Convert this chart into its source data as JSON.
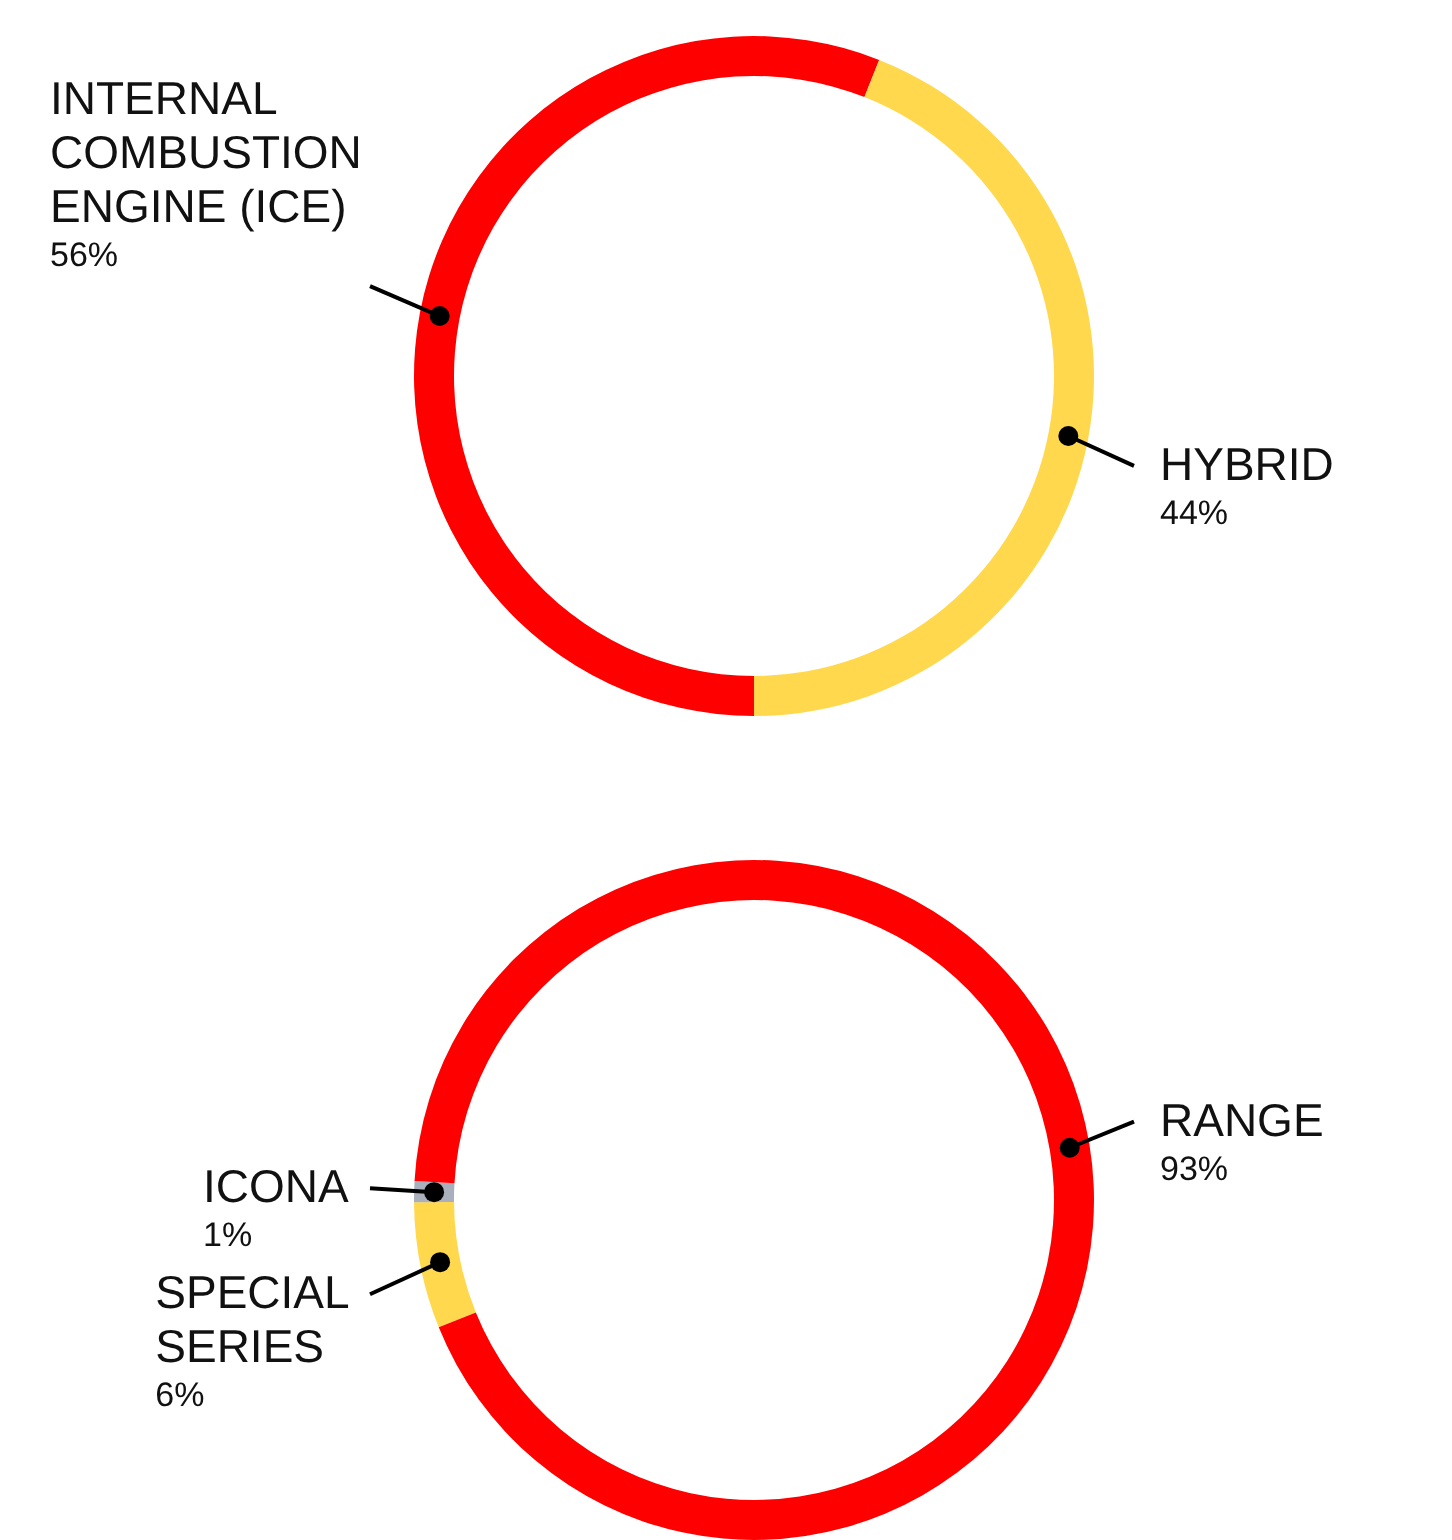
{
  "chart_data": [
    {
      "type": "donut",
      "categories": [
        "INTERNAL COMBUSTION ENGINE (ICE)",
        "HYBRID"
      ],
      "values": [
        56,
        44
      ],
      "colors": [
        "#ff0000",
        "#ffd84d"
      ],
      "value_labels": [
        "56%",
        "44%"
      ]
    },
    {
      "type": "donut",
      "categories": [
        "SPECIAL SERIES",
        "ICONA",
        "RANGE"
      ],
      "values": [
        6,
        1,
        93
      ],
      "colors": [
        "#ffd84d",
        "#a9b0bb",
        "#ff0000"
      ],
      "value_labels": [
        "6%",
        "1%",
        "93%"
      ]
    }
  ]
}
